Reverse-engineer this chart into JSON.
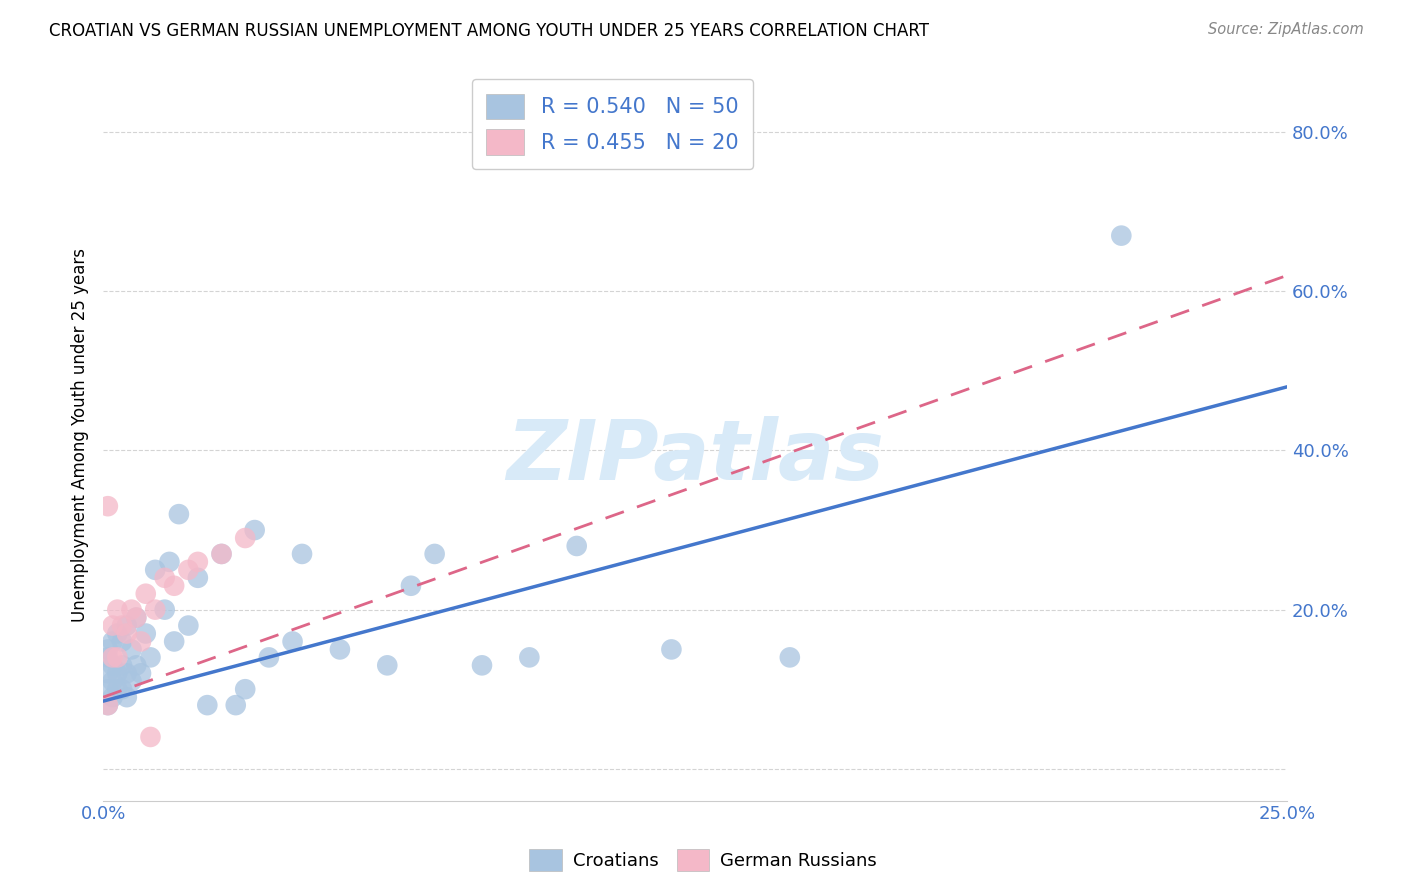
{
  "title": "CROATIAN VS GERMAN RUSSIAN UNEMPLOYMENT AMONG YOUTH UNDER 25 YEARS CORRELATION CHART",
  "source": "Source: ZipAtlas.com",
  "ylabel": "Unemployment Among Youth under 25 years",
  "xlim": [
    0.0,
    0.25
  ],
  "ylim": [
    -0.04,
    0.88
  ],
  "xticks": [
    0.0,
    0.05,
    0.1,
    0.15,
    0.2,
    0.25
  ],
  "xticklabels": [
    "0.0%",
    "",
    "",
    "",
    "",
    "25.0%"
  ],
  "yticks": [
    0.0,
    0.2,
    0.4,
    0.6,
    0.8
  ],
  "yticklabels": [
    "",
    "20.0%",
    "40.0%",
    "60.0%",
    "80.0%"
  ],
  "background_color": "#ffffff",
  "grid_color": "#d0d0d0",
  "croatian_color": "#a8c4e0",
  "german_russian_color": "#f4b8c8",
  "croatian_line_color": "#4477cc",
  "german_russian_line_color": "#dd6688",
  "tick_color": "#4477cc",
  "watermark": "ZIPatlas",
  "watermark_color": "#d8eaf8",
  "croatian_x": [
    0.001,
    0.001,
    0.001,
    0.001,
    0.001,
    0.002,
    0.002,
    0.002,
    0.002,
    0.003,
    0.003,
    0.003,
    0.004,
    0.004,
    0.004,
    0.005,
    0.005,
    0.005,
    0.006,
    0.006,
    0.007,
    0.007,
    0.008,
    0.009,
    0.01,
    0.011,
    0.013,
    0.014,
    0.015,
    0.016,
    0.018,
    0.02,
    0.022,
    0.025,
    0.028,
    0.03,
    0.032,
    0.035,
    0.04,
    0.042,
    0.05,
    0.06,
    0.065,
    0.07,
    0.08,
    0.09,
    0.1,
    0.12,
    0.145,
    0.215
  ],
  "croatian_y": [
    0.08,
    0.1,
    0.12,
    0.14,
    0.15,
    0.09,
    0.11,
    0.13,
    0.16,
    0.1,
    0.12,
    0.17,
    0.1,
    0.13,
    0.16,
    0.09,
    0.12,
    0.18,
    0.11,
    0.15,
    0.13,
    0.19,
    0.12,
    0.17,
    0.14,
    0.25,
    0.2,
    0.26,
    0.16,
    0.32,
    0.18,
    0.24,
    0.08,
    0.27,
    0.08,
    0.1,
    0.3,
    0.14,
    0.16,
    0.27,
    0.15,
    0.13,
    0.23,
    0.27,
    0.13,
    0.14,
    0.28,
    0.15,
    0.14,
    0.67
  ],
  "german_x": [
    0.001,
    0.001,
    0.002,
    0.002,
    0.003,
    0.003,
    0.004,
    0.005,
    0.006,
    0.007,
    0.008,
    0.009,
    0.01,
    0.011,
    0.013,
    0.015,
    0.018,
    0.02,
    0.025,
    0.03
  ],
  "german_y": [
    0.08,
    0.33,
    0.14,
    0.18,
    0.14,
    0.2,
    0.18,
    0.17,
    0.2,
    0.19,
    0.16,
    0.22,
    0.04,
    0.2,
    0.24,
    0.23,
    0.25,
    0.26,
    0.27,
    0.29
  ],
  "cr_line_x0": 0.0,
  "cr_line_y0": 0.085,
  "cr_line_x1": 0.25,
  "cr_line_y1": 0.48,
  "gr_line_x0": 0.0,
  "gr_line_y0": 0.09,
  "gr_line_x1": 0.25,
  "gr_line_y1": 0.62
}
